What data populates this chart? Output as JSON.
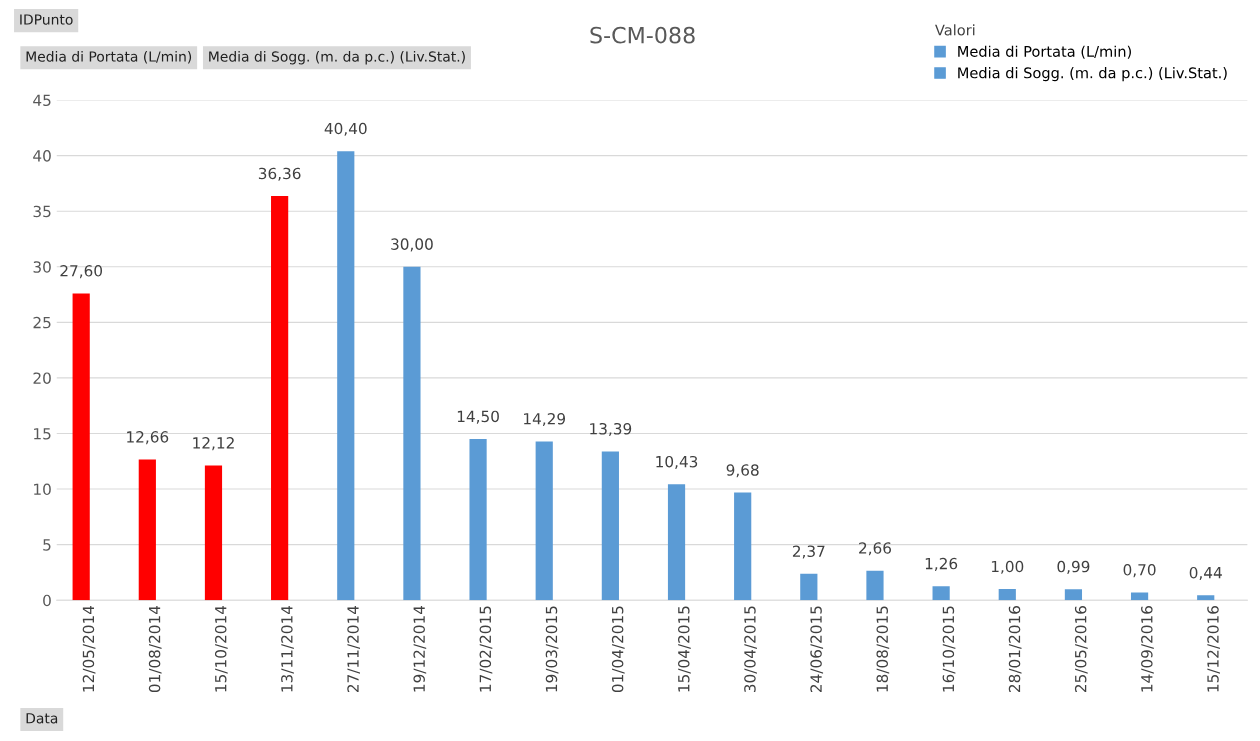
{
  "chart_data": {
    "type": "bar",
    "title": "S-CM-088",
    "categories": [
      "12/05/2014",
      "01/08/2014",
      "15/10/2014",
      "13/11/2014",
      "27/11/2014",
      "19/12/2014",
      "17/02/2015",
      "19/03/2015",
      "01/04/2015",
      "15/04/2015",
      "30/04/2015",
      "24/06/2015",
      "18/08/2015",
      "16/10/2015",
      "28/01/2016",
      "25/05/2016",
      "14/09/2016",
      "15/12/2016"
    ],
    "series": [
      {
        "name": "Media di Portata (L/min)",
        "color": "#5b9bd5",
        "colors": [
          "#ff0000",
          "#ff0000",
          "#ff0000",
          "#ff0000",
          "#5b9bd5",
          "#5b9bd5",
          "#5b9bd5",
          "#5b9bd5",
          "#5b9bd5",
          "#5b9bd5",
          "#5b9bd5",
          "#5b9bd5",
          "#5b9bd5",
          "#5b9bd5",
          "#5b9bd5",
          "#5b9bd5",
          "#5b9bd5",
          "#5b9bd5"
        ],
        "values": [
          27.6,
          12.66,
          12.12,
          36.36,
          40.4,
          30.0,
          14.5,
          14.29,
          13.39,
          10.43,
          9.68,
          2.37,
          2.66,
          1.26,
          1.0,
          0.99,
          0.7,
          0.44
        ],
        "value_labels": [
          "27,60",
          "12,66",
          "12,12",
          "36,36",
          "40,40",
          "30,00",
          "14,50",
          "14,29",
          "13,39",
          "10,43",
          "9,68",
          "2,37",
          "2,66",
          "1,26",
          "1,00",
          "0,99",
          "0,70",
          "0,44"
        ]
      },
      {
        "name": "Media di Sogg. (m. da p.c.) (Liv.Stat.)",
        "color": "#5b9bd5",
        "values": [
          null,
          null,
          null,
          null,
          null,
          null,
          null,
          null,
          null,
          null,
          null,
          null,
          null,
          null,
          null,
          null,
          null,
          null
        ]
      }
    ],
    "ylim": [
      0,
      45
    ],
    "yticks": [
      0,
      5,
      10,
      15,
      20,
      25,
      30,
      35,
      40,
      45
    ],
    "grid": "y",
    "legend": "top right",
    "legend_title": "Valori",
    "annotations": [
      "IDPunto",
      "Media di Portata (L/min)",
      "Media di Sogg. (m. da p.c.) (Liv.Stat.)",
      "Data"
    ]
  }
}
